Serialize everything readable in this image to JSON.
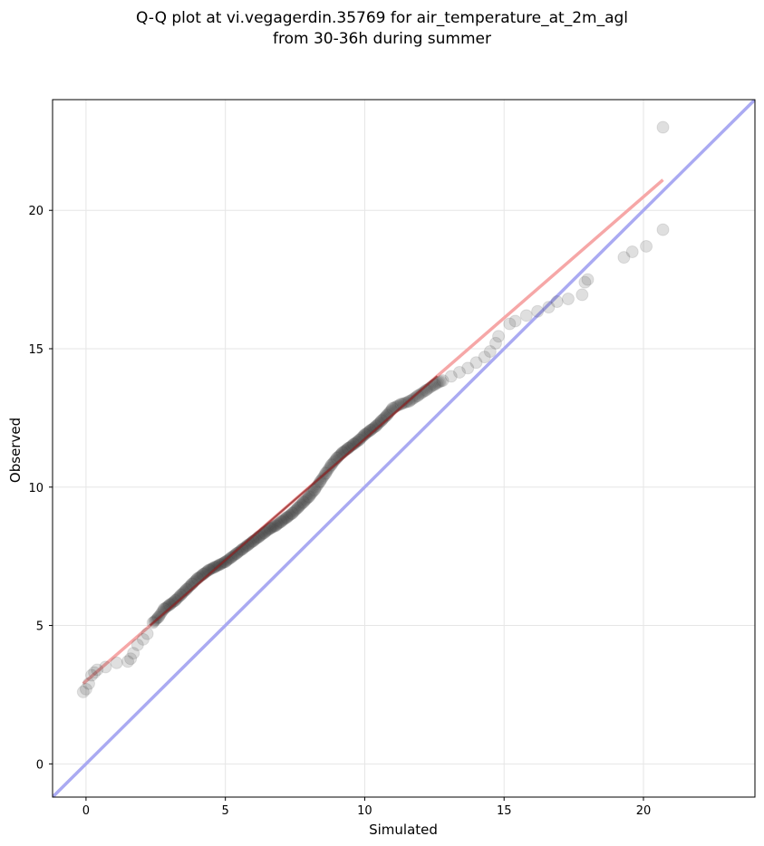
{
  "chart_data": {
    "type": "scatter",
    "title_line1": "Q-Q plot at vi.vegagerdin.35769 for air_temperature_at_2m_agl",
    "title_line2": "from 30-36h during summer",
    "xlabel": "Simulated",
    "ylabel": "Observed",
    "xlim": [
      -1.2,
      24.0
    ],
    "ylim": [
      -1.2,
      24.0
    ],
    "xticks": [
      0,
      5,
      10,
      15,
      20
    ],
    "yticks": [
      0,
      5,
      10,
      15,
      20
    ],
    "grid": true,
    "colors": {
      "points": "#3a3a3a",
      "identity_line": "#aaaaf2",
      "fit_line": "#f6a7a7",
      "fit_line_dark": "#8c2222",
      "grid": "#e6e6e6"
    },
    "identity_line": {
      "x": [
        -1.2,
        24.0
      ],
      "y": [
        -1.2,
        24.0
      ]
    },
    "fit_line": {
      "x": [
        -0.1,
        20.7
      ],
      "y": [
        2.9,
        21.1
      ]
    },
    "points": [
      {
        "x": -0.1,
        "y": 2.6
      },
      {
        "x": 0.0,
        "y": 2.7
      },
      {
        "x": 0.1,
        "y": 2.9
      },
      {
        "x": 0.2,
        "y": 3.2
      },
      {
        "x": 0.3,
        "y": 3.3
      },
      {
        "x": 0.4,
        "y": 3.4
      },
      {
        "x": 0.7,
        "y": 3.5
      },
      {
        "x": 1.1,
        "y": 3.65
      },
      {
        "x": 1.5,
        "y": 3.7
      },
      {
        "x": 1.6,
        "y": 3.8
      },
      {
        "x": 1.7,
        "y": 4.0
      },
      {
        "x": 1.85,
        "y": 4.3
      },
      {
        "x": 2.05,
        "y": 4.5
      },
      {
        "x": 2.2,
        "y": 4.7
      },
      {
        "x": 2.4,
        "y": 5.1
      },
      {
        "x": 2.6,
        "y": 5.3
      },
      {
        "x": 2.8,
        "y": 5.6
      },
      {
        "x": 3.0,
        "y": 5.75
      },
      {
        "x": 3.2,
        "y": 5.9
      },
      {
        "x": 3.4,
        "y": 6.1
      },
      {
        "x": 3.6,
        "y": 6.3
      },
      {
        "x": 3.8,
        "y": 6.5
      },
      {
        "x": 4.0,
        "y": 6.7
      },
      {
        "x": 4.2,
        "y": 6.85
      },
      {
        "x": 4.4,
        "y": 7.0
      },
      {
        "x": 4.6,
        "y": 7.1
      },
      {
        "x": 4.8,
        "y": 7.2
      },
      {
        "x": 5.0,
        "y": 7.3
      },
      {
        "x": 5.2,
        "y": 7.45
      },
      {
        "x": 5.4,
        "y": 7.6
      },
      {
        "x": 5.6,
        "y": 7.75
      },
      {
        "x": 5.8,
        "y": 7.9
      },
      {
        "x": 6.0,
        "y": 8.05
      },
      {
        "x": 6.2,
        "y": 8.2
      },
      {
        "x": 6.4,
        "y": 8.35
      },
      {
        "x": 6.6,
        "y": 8.5
      },
      {
        "x": 6.8,
        "y": 8.6
      },
      {
        "x": 7.0,
        "y": 8.75
      },
      {
        "x": 7.2,
        "y": 8.9
      },
      {
        "x": 7.4,
        "y": 9.05
      },
      {
        "x": 7.6,
        "y": 9.25
      },
      {
        "x": 7.8,
        "y": 9.45
      },
      {
        "x": 8.0,
        "y": 9.65
      },
      {
        "x": 8.2,
        "y": 9.9
      },
      {
        "x": 8.4,
        "y": 10.2
      },
      {
        "x": 8.6,
        "y": 10.5
      },
      {
        "x": 8.8,
        "y": 10.8
      },
      {
        "x": 9.0,
        "y": 11.05
      },
      {
        "x": 9.2,
        "y": 11.25
      },
      {
        "x": 9.4,
        "y": 11.4
      },
      {
        "x": 9.6,
        "y": 11.55
      },
      {
        "x": 9.8,
        "y": 11.7
      },
      {
        "x": 10.0,
        "y": 11.9
      },
      {
        "x": 10.2,
        "y": 12.05
      },
      {
        "x": 10.4,
        "y": 12.2
      },
      {
        "x": 10.6,
        "y": 12.4
      },
      {
        "x": 10.8,
        "y": 12.6
      },
      {
        "x": 11.0,
        "y": 12.85
      },
      {
        "x": 11.3,
        "y": 13.0
      },
      {
        "x": 11.6,
        "y": 13.1
      },
      {
        "x": 11.9,
        "y": 13.3
      },
      {
        "x": 12.2,
        "y": 13.5
      },
      {
        "x": 12.5,
        "y": 13.7
      },
      {
        "x": 12.8,
        "y": 13.85
      },
      {
        "x": 13.1,
        "y": 14.0
      },
      {
        "x": 13.4,
        "y": 14.15
      },
      {
        "x": 13.7,
        "y": 14.3
      },
      {
        "x": 14.0,
        "y": 14.5
      },
      {
        "x": 14.3,
        "y": 14.7
      },
      {
        "x": 14.5,
        "y": 14.9
      },
      {
        "x": 14.7,
        "y": 15.2
      },
      {
        "x": 14.8,
        "y": 15.45
      },
      {
        "x": 15.2,
        "y": 15.9
      },
      {
        "x": 15.4,
        "y": 16.0
      },
      {
        "x": 15.8,
        "y": 16.2
      },
      {
        "x": 16.2,
        "y": 16.35
      },
      {
        "x": 16.6,
        "y": 16.5
      },
      {
        "x": 16.9,
        "y": 16.7
      },
      {
        "x": 17.3,
        "y": 16.8
      },
      {
        "x": 17.8,
        "y": 16.95
      },
      {
        "x": 17.9,
        "y": 17.4
      },
      {
        "x": 18.0,
        "y": 17.5
      },
      {
        "x": 19.3,
        "y": 18.3
      },
      {
        "x": 19.6,
        "y": 18.5
      },
      {
        "x": 20.1,
        "y": 18.7
      },
      {
        "x": 20.7,
        "y": 19.3
      },
      {
        "x": 20.7,
        "y": 23.0
      }
    ]
  }
}
